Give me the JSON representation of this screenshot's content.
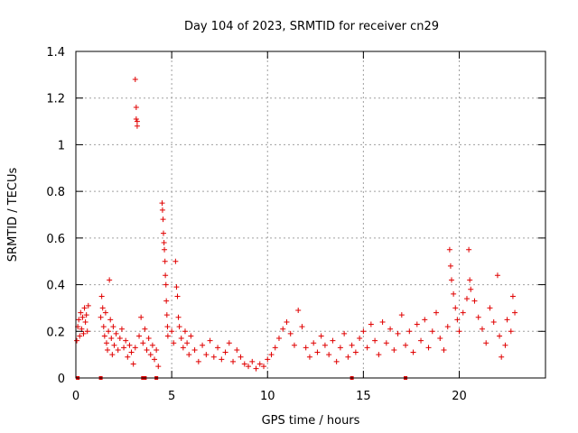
{
  "chart_data": {
    "type": "scatter",
    "title": "Day 104 of 2023, SRMTID for receiver cn29",
    "xlabel": "GPS time / hours",
    "ylabel": "SRMTID / TECUs",
    "xlim": [
      0,
      24.5
    ],
    "ylim": [
      0,
      1.4
    ],
    "xticks": [
      0,
      5,
      10,
      15,
      20
    ],
    "xtick_labels": [
      "0",
      "5",
      "10",
      "15",
      "20"
    ],
    "yticks": [
      0,
      0.2,
      0.4,
      0.6,
      0.8,
      1.0,
      1.2,
      1.4
    ],
    "ytick_labels": [
      "0",
      "0.2",
      "0.4",
      "0.6",
      "0.8",
      "1",
      "1.2",
      "1.4"
    ],
    "grid": true,
    "marker": "+",
    "series": [
      {
        "name": "SRMTID",
        "color": "#e00000",
        "points": [
          [
            0.05,
            0.16
          ],
          [
            0.1,
            0.22
          ],
          [
            0.15,
            0.25
          ],
          [
            0.2,
            0.18
          ],
          [
            0.25,
            0.28
          ],
          [
            0.3,
            0.21
          ],
          [
            0.35,
            0.26
          ],
          [
            0.4,
            0.19
          ],
          [
            0.45,
            0.3
          ],
          [
            0.5,
            0.24
          ],
          [
            0.55,
            0.27
          ],
          [
            0.6,
            0.2
          ],
          [
            0.65,
            0.31
          ],
          [
            1.3,
            0.26
          ],
          [
            1.35,
            0.35
          ],
          [
            1.4,
            0.3
          ],
          [
            1.45,
            0.22
          ],
          [
            1.5,
            0.18
          ],
          [
            1.55,
            0.28
          ],
          [
            1.6,
            0.15
          ],
          [
            1.65,
            0.12
          ],
          [
            1.7,
            0.2
          ],
          [
            1.75,
            0.42
          ],
          [
            1.8,
            0.25
          ],
          [
            1.85,
            0.17
          ],
          [
            1.9,
            0.1
          ],
          [
            1.95,
            0.22
          ],
          [
            2.0,
            0.14
          ],
          [
            2.1,
            0.19
          ],
          [
            2.2,
            0.12
          ],
          [
            2.3,
            0.17
          ],
          [
            2.4,
            0.21
          ],
          [
            2.5,
            0.13
          ],
          [
            2.6,
            0.16
          ],
          [
            2.7,
            0.09
          ],
          [
            2.8,
            0.14
          ],
          [
            2.9,
            0.11
          ],
          [
            3.0,
            0.06
          ],
          [
            3.1,
            0.13
          ],
          [
            3.1,
            1.28
          ],
          [
            3.15,
            1.16
          ],
          [
            3.15,
            1.11
          ],
          [
            3.2,
            1.1
          ],
          [
            3.2,
            1.08
          ],
          [
            3.3,
            0.18
          ],
          [
            3.4,
            0.26
          ],
          [
            3.5,
            0.15
          ],
          [
            3.6,
            0.21
          ],
          [
            3.7,
            0.12
          ],
          [
            3.8,
            0.17
          ],
          [
            3.9,
            0.1
          ],
          [
            4.0,
            0.14
          ],
          [
            4.1,
            0.08
          ],
          [
            4.2,
            0.12
          ],
          [
            4.3,
            0.05
          ],
          [
            4.5,
            0.75
          ],
          [
            4.52,
            0.72
          ],
          [
            4.55,
            0.68
          ],
          [
            4.57,
            0.62
          ],
          [
            4.6,
            0.58
          ],
          [
            4.62,
            0.55
          ],
          [
            4.65,
            0.5
          ],
          [
            4.67,
            0.44
          ],
          [
            4.7,
            0.4
          ],
          [
            4.72,
            0.33
          ],
          [
            4.75,
            0.27
          ],
          [
            4.78,
            0.22
          ],
          [
            4.8,
            0.18
          ],
          [
            5.0,
            0.2
          ],
          [
            5.1,
            0.15
          ],
          [
            5.2,
            0.5
          ],
          [
            5.25,
            0.39
          ],
          [
            5.3,
            0.35
          ],
          [
            5.35,
            0.26
          ],
          [
            5.4,
            0.22
          ],
          [
            5.5,
            0.17
          ],
          [
            5.6,
            0.13
          ],
          [
            5.7,
            0.2
          ],
          [
            5.8,
            0.15
          ],
          [
            5.9,
            0.1
          ],
          [
            6.0,
            0.18
          ],
          [
            6.2,
            0.12
          ],
          [
            6.4,
            0.07
          ],
          [
            6.6,
            0.14
          ],
          [
            6.8,
            0.1
          ],
          [
            7.0,
            0.16
          ],
          [
            7.2,
            0.09
          ],
          [
            7.4,
            0.13
          ],
          [
            7.6,
            0.08
          ],
          [
            7.8,
            0.11
          ],
          [
            8.0,
            0.15
          ],
          [
            8.2,
            0.07
          ],
          [
            8.4,
            0.12
          ],
          [
            8.6,
            0.09
          ],
          [
            8.8,
            0.06
          ],
          [
            9.0,
            0.05
          ],
          [
            9.2,
            0.07
          ],
          [
            9.4,
            0.04
          ],
          [
            9.6,
            0.06
          ],
          [
            9.8,
            0.05
          ],
          [
            10.0,
            0.08
          ],
          [
            10.2,
            0.1
          ],
          [
            10.4,
            0.13
          ],
          [
            10.6,
            0.17
          ],
          [
            10.8,
            0.21
          ],
          [
            11.0,
            0.24
          ],
          [
            11.2,
            0.19
          ],
          [
            11.4,
            0.14
          ],
          [
            11.6,
            0.29
          ],
          [
            11.8,
            0.22
          ],
          [
            12.0,
            0.13
          ],
          [
            12.2,
            0.09
          ],
          [
            12.4,
            0.15
          ],
          [
            12.6,
            0.11
          ],
          [
            12.8,
            0.18
          ],
          [
            13.0,
            0.14
          ],
          [
            13.2,
            0.1
          ],
          [
            13.4,
            0.16
          ],
          [
            13.6,
            0.07
          ],
          [
            13.8,
            0.13
          ],
          [
            14.0,
            0.19
          ],
          [
            14.2,
            0.09
          ],
          [
            14.4,
            0.14
          ],
          [
            14.6,
            0.11
          ],
          [
            14.8,
            0.17
          ],
          [
            15.0,
            0.2
          ],
          [
            15.2,
            0.13
          ],
          [
            15.4,
            0.23
          ],
          [
            15.6,
            0.16
          ],
          [
            15.8,
            0.1
          ],
          [
            16.0,
            0.24
          ],
          [
            16.2,
            0.15
          ],
          [
            16.4,
            0.21
          ],
          [
            16.6,
            0.12
          ],
          [
            16.8,
            0.19
          ],
          [
            17.0,
            0.27
          ],
          [
            17.2,
            0.14
          ],
          [
            17.4,
            0.2
          ],
          [
            17.6,
            0.11
          ],
          [
            17.8,
            0.23
          ],
          [
            18.0,
            0.16
          ],
          [
            18.2,
            0.25
          ],
          [
            18.4,
            0.13
          ],
          [
            18.6,
            0.2
          ],
          [
            18.8,
            0.28
          ],
          [
            19.0,
            0.17
          ],
          [
            19.2,
            0.12
          ],
          [
            19.4,
            0.22
          ],
          [
            19.5,
            0.55
          ],
          [
            19.55,
            0.48
          ],
          [
            19.6,
            0.42
          ],
          [
            19.7,
            0.36
          ],
          [
            19.8,
            0.3
          ],
          [
            19.9,
            0.25
          ],
          [
            20.0,
            0.2
          ],
          [
            20.2,
            0.28
          ],
          [
            20.4,
            0.34
          ],
          [
            20.5,
            0.55
          ],
          [
            20.55,
            0.42
          ],
          [
            20.6,
            0.38
          ],
          [
            20.8,
            0.33
          ],
          [
            21.0,
            0.26
          ],
          [
            21.2,
            0.21
          ],
          [
            21.4,
            0.15
          ],
          [
            21.6,
            0.3
          ],
          [
            21.8,
            0.24
          ],
          [
            22.0,
            0.44
          ],
          [
            22.1,
            0.18
          ],
          [
            22.2,
            0.09
          ],
          [
            22.4,
            0.14
          ],
          [
            22.5,
            0.25
          ],
          [
            22.7,
            0.2
          ],
          [
            22.8,
            0.35
          ],
          [
            22.9,
            0.28
          ]
        ]
      }
    ],
    "zero_markers_x": [
      0.1,
      1.3,
      3.5,
      3.6,
      4.2,
      14.4,
      17.2
    ]
  }
}
